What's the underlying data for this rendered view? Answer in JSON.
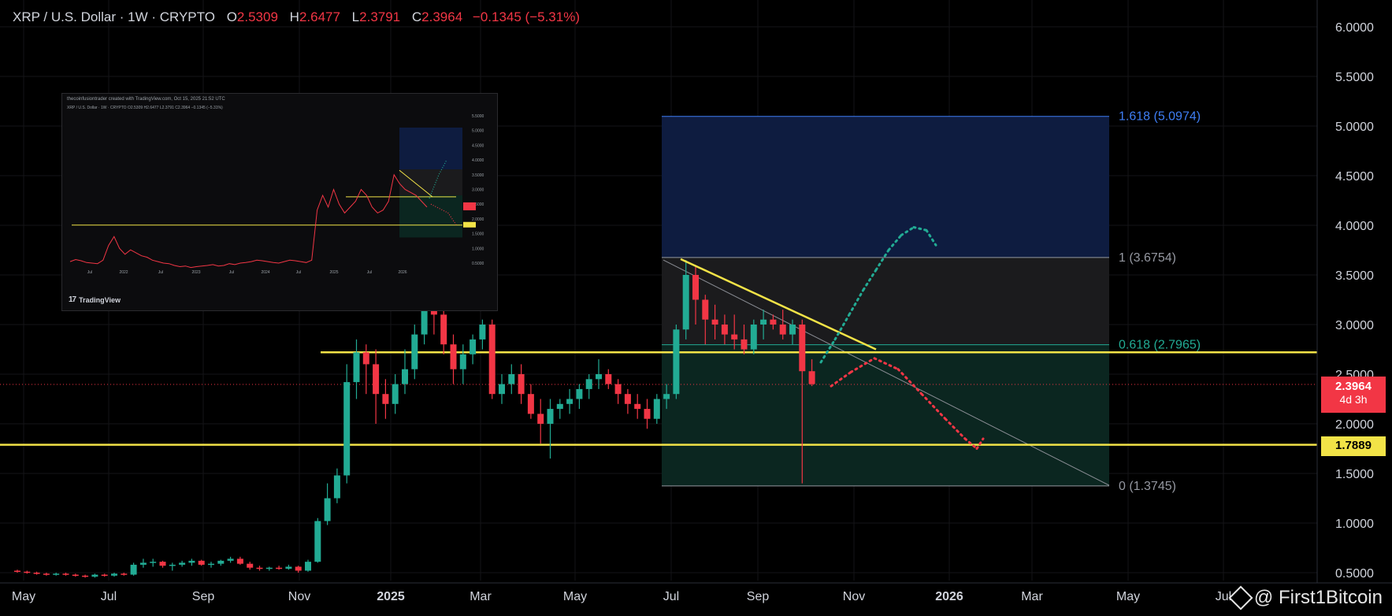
{
  "header": {
    "symbol": "XRP / U.S. Dollar · 1W · CRYPTO",
    "open_label": "O",
    "open": "2.5309",
    "high_label": "H",
    "high": "2.6477",
    "low_label": "L",
    "low": "2.3791",
    "close_label": "C",
    "close": "2.3964",
    "change": "−0.1345 (−5.31%)"
  },
  "chart_data": {
    "type": "candlestick",
    "y_axis": {
      "ticks": [
        "6.0000",
        "5.5000",
        "5.0000",
        "4.5000",
        "4.0000",
        "3.5000",
        "3.0000",
        "2.5000",
        "2.0000",
        "1.5000",
        "1.0000",
        "0.5000"
      ],
      "ylim": [
        0.45,
        6.1
      ]
    },
    "x_axis": {
      "ticks": [
        "May",
        "Jul",
        "Sep",
        "Nov",
        "2025",
        "Mar",
        "May",
        "Jul",
        "Sep",
        "Nov",
        "2026",
        "Mar",
        "May",
        "Jul"
      ]
    },
    "candles": [
      [
        0.52,
        0.53,
        0.5,
        0.51
      ],
      [
        0.51,
        0.52,
        0.49,
        0.5
      ],
      [
        0.5,
        0.51,
        0.48,
        0.49
      ],
      [
        0.49,
        0.5,
        0.47,
        0.48
      ],
      [
        0.48,
        0.5,
        0.47,
        0.49
      ],
      [
        0.49,
        0.5,
        0.47,
        0.48
      ],
      [
        0.48,
        0.49,
        0.46,
        0.47
      ],
      [
        0.47,
        0.48,
        0.45,
        0.46
      ],
      [
        0.46,
        0.49,
        0.45,
        0.48
      ],
      [
        0.48,
        0.49,
        0.46,
        0.47
      ],
      [
        0.47,
        0.5,
        0.46,
        0.49
      ],
      [
        0.49,
        0.5,
        0.47,
        0.48
      ],
      [
        0.48,
        0.6,
        0.47,
        0.58
      ],
      [
        0.58,
        0.64,
        0.55,
        0.6
      ],
      [
        0.6,
        0.64,
        0.56,
        0.61
      ],
      [
        0.61,
        0.62,
        0.55,
        0.57
      ],
      [
        0.57,
        0.6,
        0.52,
        0.58
      ],
      [
        0.58,
        0.62,
        0.56,
        0.6
      ],
      [
        0.6,
        0.64,
        0.57,
        0.62
      ],
      [
        0.62,
        0.63,
        0.57,
        0.58
      ],
      [
        0.58,
        0.61,
        0.55,
        0.59
      ],
      [
        0.59,
        0.63,
        0.57,
        0.62
      ],
      [
        0.62,
        0.66,
        0.6,
        0.64
      ],
      [
        0.64,
        0.66,
        0.58,
        0.59
      ],
      [
        0.59,
        0.61,
        0.53,
        0.55
      ],
      [
        0.55,
        0.57,
        0.52,
        0.54
      ],
      [
        0.54,
        0.56,
        0.52,
        0.55
      ],
      [
        0.55,
        0.57,
        0.53,
        0.54
      ],
      [
        0.54,
        0.58,
        0.53,
        0.56
      ],
      [
        0.56,
        0.57,
        0.5,
        0.52
      ],
      [
        0.52,
        0.63,
        0.51,
        0.61
      ],
      [
        0.61,
        1.05,
        0.6,
        1.02
      ],
      [
        1.02,
        1.4,
        0.98,
        1.25
      ],
      [
        1.25,
        1.55,
        1.2,
        1.48
      ],
      [
        1.48,
        2.6,
        1.4,
        2.42
      ],
      [
        2.42,
        2.85,
        2.25,
        2.72
      ],
      [
        2.72,
        2.8,
        2.3,
        2.6
      ],
      [
        2.6,
        2.75,
        2.0,
        2.3
      ],
      [
        2.3,
        2.45,
        2.05,
        2.2
      ],
      [
        2.2,
        2.5,
        2.1,
        2.4
      ],
      [
        2.4,
        2.75,
        2.3,
        2.55
      ],
      [
        2.55,
        3.0,
        2.45,
        2.9
      ],
      [
        2.9,
        3.4,
        2.8,
        3.2
      ],
      [
        3.2,
        3.3,
        2.9,
        3.1
      ],
      [
        3.1,
        3.25,
        2.7,
        2.8
      ],
      [
        2.8,
        2.9,
        2.4,
        2.55
      ],
      [
        2.55,
        2.8,
        2.4,
        2.7
      ],
      [
        2.7,
        2.9,
        2.6,
        2.85
      ],
      [
        2.85,
        3.05,
        2.75,
        3.0
      ],
      [
        3.0,
        3.05,
        2.25,
        2.3
      ],
      [
        2.3,
        2.5,
        2.2,
        2.4
      ],
      [
        2.4,
        2.6,
        2.3,
        2.5
      ],
      [
        2.5,
        2.6,
        2.2,
        2.3
      ],
      [
        2.3,
        2.4,
        2.05,
        2.1
      ],
      [
        2.1,
        2.25,
        1.8,
        2.0
      ],
      [
        2.0,
        2.25,
        1.65,
        2.15
      ],
      [
        2.15,
        2.25,
        2.05,
        2.2
      ],
      [
        2.2,
        2.35,
        2.1,
        2.25
      ],
      [
        2.25,
        2.4,
        2.15,
        2.35
      ],
      [
        2.35,
        2.5,
        2.25,
        2.45
      ],
      [
        2.45,
        2.65,
        2.35,
        2.5
      ],
      [
        2.5,
        2.55,
        2.35,
        2.4
      ],
      [
        2.4,
        2.45,
        2.2,
        2.3
      ],
      [
        2.3,
        2.35,
        2.1,
        2.2
      ],
      [
        2.2,
        2.3,
        2.05,
        2.15
      ],
      [
        2.15,
        2.25,
        1.95,
        2.05
      ],
      [
        2.05,
        2.3,
        2.0,
        2.25
      ],
      [
        2.25,
        2.4,
        2.15,
        2.3
      ],
      [
        2.3,
        3.0,
        2.25,
        2.95
      ],
      [
        2.95,
        3.65,
        2.85,
        3.5
      ],
      [
        3.5,
        3.6,
        3.0,
        3.25
      ],
      [
        3.25,
        3.3,
        2.8,
        3.05
      ],
      [
        3.05,
        3.2,
        2.85,
        3.0
      ],
      [
        3.0,
        3.1,
        2.8,
        2.9
      ],
      [
        2.9,
        3.1,
        2.75,
        2.85
      ],
      [
        2.85,
        3.0,
        2.7,
        2.75
      ],
      [
        2.75,
        3.05,
        2.7,
        3.0
      ],
      [
        3.0,
        3.15,
        2.85,
        3.05
      ],
      [
        3.05,
        3.1,
        2.95,
        3.0
      ],
      [
        3.0,
        3.15,
        2.85,
        2.9
      ],
      [
        2.9,
        3.05,
        2.8,
        3.0
      ],
      [
        3.0,
        3.05,
        1.4,
        2.53
      ],
      [
        2.53,
        2.65,
        2.38,
        2.4
      ]
    ],
    "horizontal_lines": [
      {
        "price": 2.72,
        "color": "#f2e347"
      },
      {
        "price": 1.7889,
        "color": "#f2e347"
      }
    ],
    "fib": {
      "levels": [
        {
          "ratio": "1.618",
          "price": 5.0974,
          "label": "1.618 (5.0974)",
          "color": "#3f7ff5"
        },
        {
          "ratio": "1",
          "price": 3.6754,
          "label": "1 (3.6754)",
          "color": "#9598a1"
        },
        {
          "ratio": "0.618",
          "price": 2.7965,
          "label": "0.618 (2.7965)",
          "color": "#22ab94"
        },
        {
          "ratio": "0",
          "price": 1.3745,
          "label": "0 (1.3745)",
          "color": "#9598a1"
        }
      ]
    },
    "price_tags": [
      {
        "value": "2.3964",
        "sub": "4d 3h",
        "color": "#f23645"
      },
      {
        "value": "1.7889",
        "color": "#f2e347"
      }
    ]
  },
  "inset": {
    "caption": "thecoinfusiontrader created with TradingView.com, Oct 15, 2025 21:52 UTC",
    "ohlc": "XRP / U.S. Dollar · 1W · CRYPTO  O2.5309  H2.6477  L2.3791  C2.3964  −0.1345 (−5.31%)",
    "y_ticks": [
      "5.5000",
      "5.0000",
      "4.5000",
      "4.0000",
      "3.5000",
      "3.0000",
      "2.5000",
      "2.0000",
      "1.5000",
      "1.0000",
      "0.5000"
    ],
    "x_ticks": [
      "Jul",
      "2022",
      "Jul",
      "2023",
      "Jul",
      "2024",
      "Jul",
      "2025",
      "Jul",
      "2026"
    ],
    "brand": "TradingView"
  },
  "watermark": {
    "text": "@ First1Bitcoin"
  }
}
